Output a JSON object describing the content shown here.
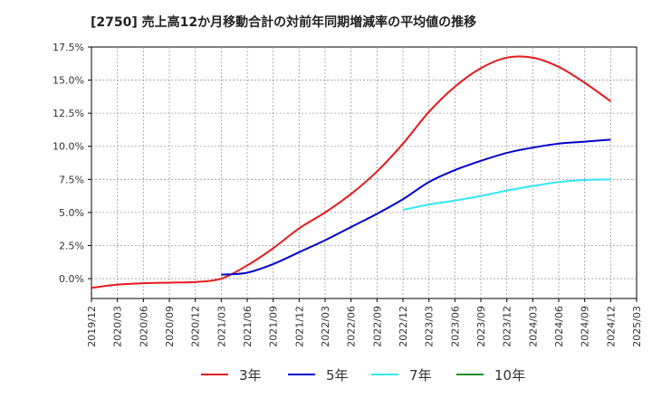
{
  "chart_data": {
    "type": "line",
    "title": "[2750]  売上高12か月移動合計の対前年同期増減率の平均値の推移",
    "xlabel": "",
    "ylabel": "",
    "x_ticks": [
      "2019/12",
      "2020/03",
      "2020/06",
      "2020/09",
      "2020/12",
      "2021/03",
      "2021/06",
      "2021/09",
      "2021/12",
      "2022/03",
      "2022/06",
      "2022/09",
      "2022/12",
      "2023/03",
      "2023/06",
      "2023/09",
      "2023/12",
      "2024/03",
      "2024/06",
      "2024/09",
      "2024/12",
      "2025/03"
    ],
    "y_ticks": [
      "0.0%",
      "2.5%",
      "5.0%",
      "7.5%",
      "10.0%",
      "12.5%",
      "15.0%",
      "17.5%"
    ],
    "ylim": [
      -1.5,
      17.5
    ],
    "grid": true,
    "legend_position": "bottom",
    "series": [
      {
        "name": "3年",
        "color": "#e41a1c",
        "x": [
          "2019/12",
          "2020/03",
          "2020/06",
          "2020/09",
          "2020/12",
          "2021/03",
          "2021/06",
          "2021/09",
          "2021/12",
          "2022/03",
          "2022/06",
          "2022/09",
          "2022/12",
          "2023/03",
          "2023/06",
          "2023/09",
          "2023/12",
          "2024/03",
          "2024/06",
          "2024/09",
          "2024/12"
        ],
        "values": [
          -0.7,
          -0.45,
          -0.35,
          -0.3,
          -0.25,
          0.0,
          1.0,
          2.3,
          3.8,
          5.0,
          6.4,
          8.1,
          10.2,
          12.6,
          14.5,
          15.9,
          16.7,
          16.7,
          16.0,
          14.8,
          13.4
        ]
      },
      {
        "name": "5年",
        "color": "#0000cc",
        "x": [
          "2021/03",
          "2021/06",
          "2021/09",
          "2021/12",
          "2022/03",
          "2022/06",
          "2022/09",
          "2022/12",
          "2023/03",
          "2023/06",
          "2023/09",
          "2023/12",
          "2024/03",
          "2024/06",
          "2024/09",
          "2024/12"
        ],
        "values": [
          0.3,
          0.45,
          1.1,
          2.0,
          2.9,
          3.9,
          4.9,
          6.0,
          7.3,
          8.2,
          8.9,
          9.5,
          9.9,
          10.2,
          10.35,
          10.5
        ]
      },
      {
        "name": "7年",
        "color": "#33e6f2",
        "x": [
          "2022/12",
          "2023/03",
          "2023/06",
          "2023/09",
          "2023/12",
          "2024/03",
          "2024/06",
          "2024/09",
          "2024/12"
        ],
        "values": [
          5.2,
          5.6,
          5.9,
          6.25,
          6.65,
          7.0,
          7.3,
          7.45,
          7.5
        ]
      },
      {
        "name": "10年",
        "color": "#228b22",
        "x": [],
        "values": []
      }
    ]
  }
}
